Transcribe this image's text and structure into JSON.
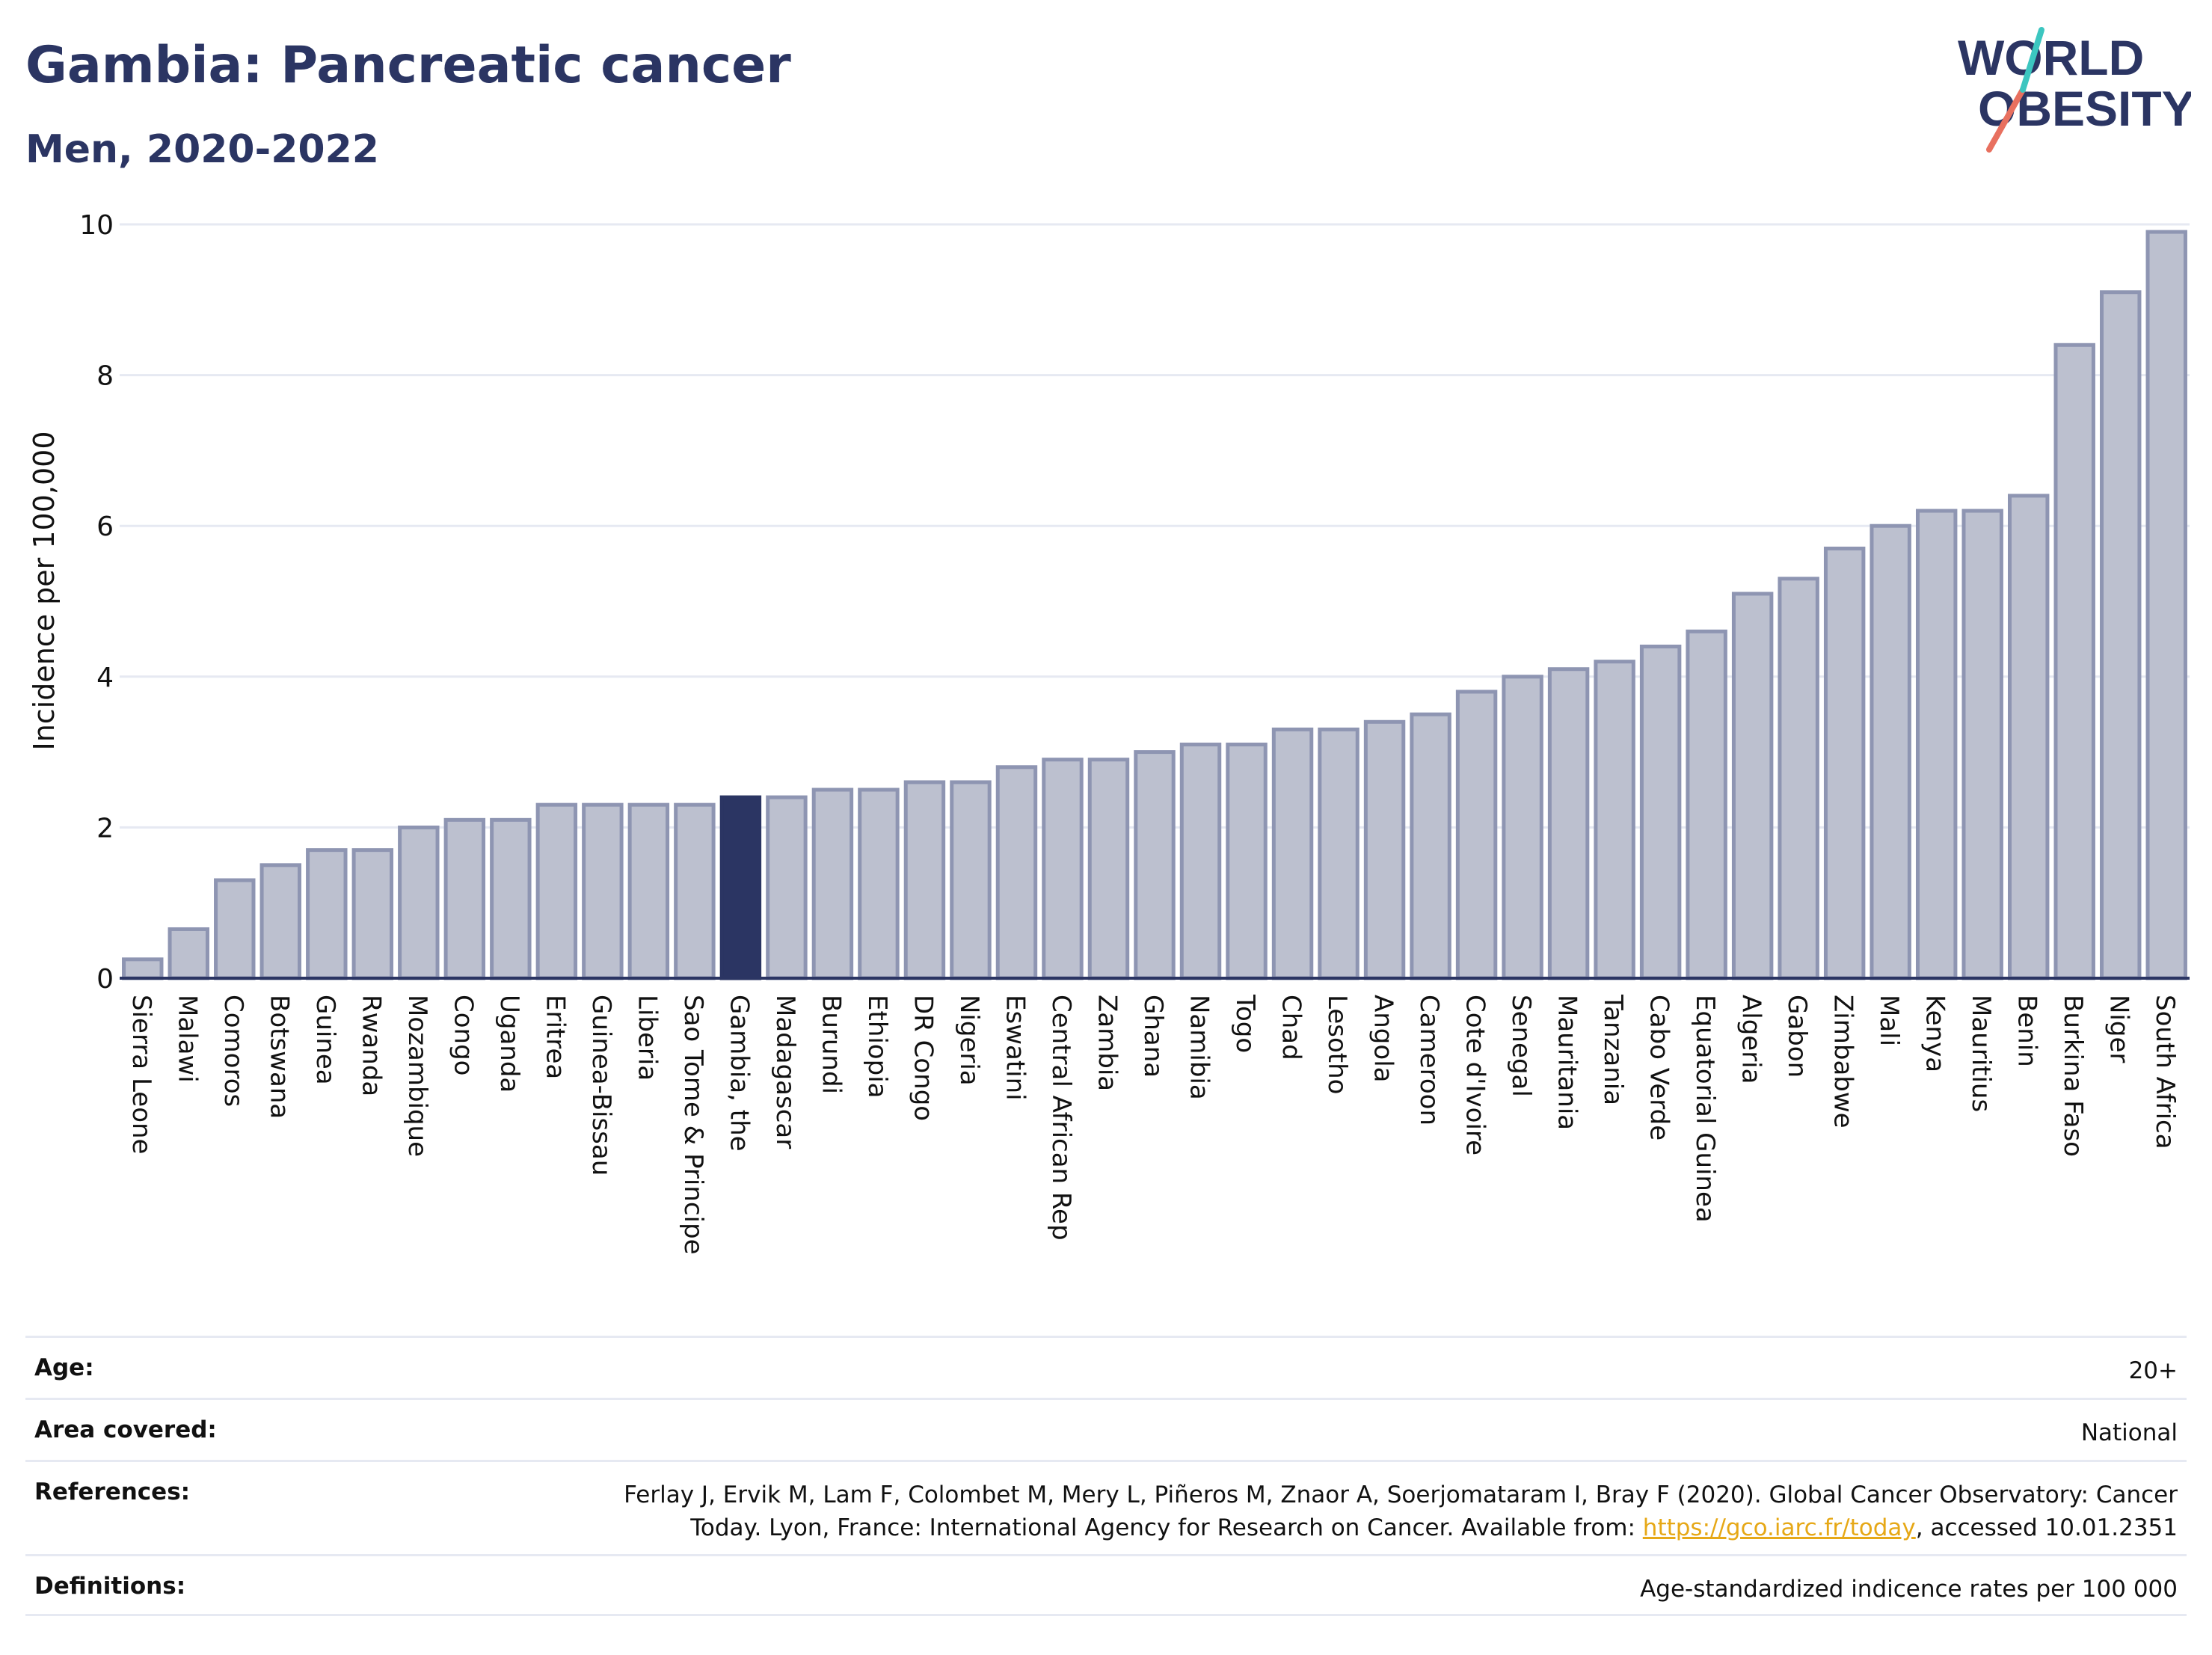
{
  "header": {
    "title": "Gambia: Pancreatic cancer",
    "subtitle": "Men, 2020-2022"
  },
  "logo": {
    "line1": "WORLD",
    "line2": "OBESITY",
    "text_color": "#2b3563",
    "slash_colors": [
      "#e8705f",
      "#3cc6c0"
    ]
  },
  "colors": {
    "bar_fill": "#bcc0cf",
    "bar_stroke": "#8e95b2",
    "highlight": "#2b3563",
    "grid": "#e6e9f2",
    "baseline": "#2b3563"
  },
  "chart_data": {
    "type": "bar",
    "ylabel": "Incidence per 100,000",
    "xlabel": "",
    "ylim": [
      0,
      10
    ],
    "yticks": [
      0,
      2,
      4,
      6,
      8,
      10
    ],
    "grid": true,
    "highlight_category": "Gambia, the",
    "categories": [
      "Sierra Leone",
      "Malawi",
      "Comoros",
      "Botswana",
      "Guinea",
      "Rwanda",
      "Mozambique",
      "Congo",
      "Uganda",
      "Eritrea",
      "Guinea-Bissau",
      "Liberia",
      "Sao Tome & Principe",
      "Gambia, the",
      "Madagascar",
      "Burundi",
      "Ethiopia",
      "DR Congo",
      "Nigeria",
      "Eswatini",
      "Central African Rep",
      "Zambia",
      "Ghana",
      "Namibia",
      "Togo",
      "Chad",
      "Lesotho",
      "Angola",
      "Cameroon",
      "Cote d'Ivoire",
      "Senegal",
      "Mauritania",
      "Tanzania",
      "Cabo Verde",
      "Equatorial Guinea",
      "Algeria",
      "Gabon",
      "Zimbabwe",
      "Mali",
      "Kenya",
      "Mauritius",
      "Benin",
      "Burkina Faso",
      "Niger",
      "South Africa"
    ],
    "values": [
      0.25,
      0.65,
      1.3,
      1.5,
      1.7,
      1.7,
      2.0,
      2.1,
      2.1,
      2.3,
      2.3,
      2.3,
      2.3,
      2.4,
      2.4,
      2.5,
      2.5,
      2.6,
      2.6,
      2.8,
      2.9,
      2.9,
      3.0,
      3.1,
      3.1,
      3.3,
      3.3,
      3.4,
      3.5,
      3.8,
      4.0,
      4.1,
      4.2,
      4.4,
      4.6,
      5.1,
      5.3,
      5.7,
      6.0,
      6.2,
      6.2,
      6.4,
      8.4,
      9.1,
      9.9
    ]
  },
  "meta": {
    "age": {
      "label": "Age:",
      "value": "20+"
    },
    "area": {
      "label": "Area covered:",
      "value": "National"
    },
    "references": {
      "label": "References:",
      "line1": "Ferlay J, Ervik M, Lam F, Colombet M, Mery L, Piñeros M, Znaor A, Soerjomataram I, Bray F (2020). Global Cancer Observatory: Cancer",
      "line2_before": "Today. Lyon, France: International Agency for Research on Cancer. Available from: ",
      "link": "https://gco.iarc.fr/today",
      "line2_after": ", accessed 10.01.2351"
    },
    "definitions": {
      "label": "Definitions:",
      "value": "Age-standardized indicence rates per 100 000"
    }
  }
}
